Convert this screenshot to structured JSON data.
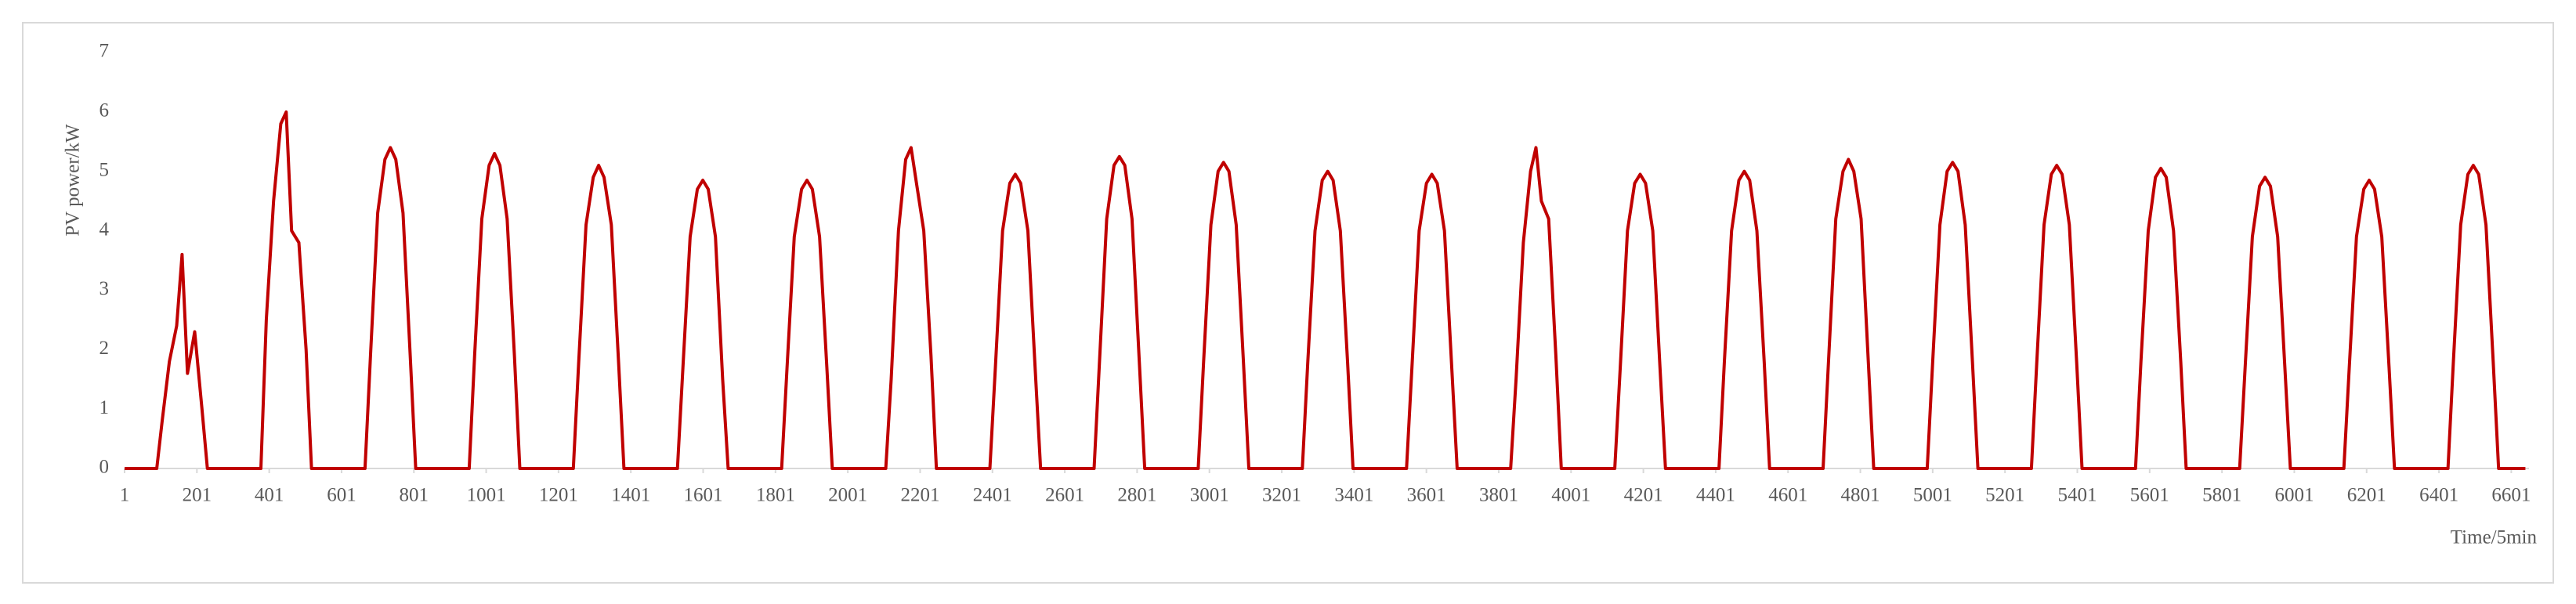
{
  "chart_data": {
    "type": "line",
    "x_label": "Time/5min",
    "y_label": "PV power/kW",
    "x": [
      1,
      90,
      105,
      125,
      145,
      160,
      175,
      195,
      215,
      230,
      378,
      393,
      413,
      433,
      448,
      463,
      483,
      503,
      518,
      666,
      681,
      701,
      721,
      736,
      751,
      771,
      791,
      806,
      954,
      969,
      989,
      1009,
      1024,
      1039,
      1059,
      1079,
      1094,
      1242,
      1257,
      1277,
      1297,
      1312,
      1327,
      1347,
      1367,
      1382,
      1530,
      1545,
      1565,
      1585,
      1600,
      1615,
      1635,
      1655,
      1670,
      1818,
      1833,
      1853,
      1873,
      1888,
      1903,
      1923,
      1943,
      1958,
      2106,
      2121,
      2141,
      2161,
      2176,
      2191,
      2211,
      2231,
      2246,
      2394,
      2409,
      2429,
      2449,
      2464,
      2479,
      2499,
      2519,
      2534,
      2682,
      2697,
      2717,
      2737,
      2752,
      2767,
      2787,
      2807,
      2822,
      2970,
      2985,
      3005,
      3025,
      3040,
      3055,
      3075,
      3095,
      3110,
      3258,
      3273,
      3293,
      3313,
      3328,
      3343,
      3363,
      3383,
      3398,
      3546,
      3561,
      3581,
      3601,
      3616,
      3631,
      3651,
      3671,
      3686,
      3834,
      3849,
      3869,
      3889,
      3904,
      3919,
      3939,
      3959,
      3974,
      4122,
      4137,
      4157,
      4177,
      4192,
      4207,
      4227,
      4247,
      4262,
      4410,
      4425,
      4445,
      4465,
      4480,
      4495,
      4515,
      4535,
      4550,
      4698,
      4713,
      4733,
      4753,
      4768,
      4783,
      4803,
      4823,
      4838,
      4986,
      5001,
      5021,
      5041,
      5056,
      5071,
      5091,
      5111,
      5126,
      5274,
      5289,
      5309,
      5329,
      5344,
      5359,
      5379,
      5399,
      5414,
      5562,
      5577,
      5597,
      5617,
      5632,
      5647,
      5667,
      5687,
      5702,
      5850,
      5865,
      5885,
      5905,
      5920,
      5935,
      5955,
      5975,
      5990,
      6138,
      6153,
      6173,
      6193,
      6208,
      6223,
      6243,
      6263,
      6278,
      6426,
      6441,
      6461,
      6481,
      6496,
      6511,
      6531,
      6551,
      6566,
      6640
    ],
    "series": [
      {
        "color": "#c00000",
        "values": [
          0,
          0,
          0.8,
          1.8,
          2.4,
          3.6,
          1.6,
          2.3,
          1.0,
          0,
          0,
          2.5,
          4.5,
          5.8,
          6.0,
          4.0,
          3.8,
          2.0,
          0,
          0,
          1.9,
          4.3,
          5.2,
          5.4,
          5.2,
          4.3,
          1.9,
          0,
          0,
          1.9,
          4.2,
          5.1,
          5.3,
          5.1,
          4.2,
          1.9,
          0,
          0,
          1.8,
          4.1,
          4.9,
          5.1,
          4.9,
          4.1,
          1.8,
          0,
          0,
          1.7,
          3.9,
          4.7,
          4.85,
          4.7,
          3.9,
          1.5,
          0,
          0,
          1.7,
          3.9,
          4.7,
          4.85,
          4.7,
          3.9,
          1.7,
          0,
          0,
          1.5,
          4.0,
          5.2,
          5.4,
          4.8,
          4.0,
          1.9,
          0,
          0,
          1.7,
          4.0,
          4.8,
          4.95,
          4.8,
          4.0,
          1.7,
          0,
          0,
          1.8,
          4.2,
          5.1,
          5.25,
          5.1,
          4.2,
          1.8,
          0,
          0,
          1.8,
          4.1,
          5.0,
          5.15,
          5.0,
          4.1,
          1.8,
          0,
          0,
          1.8,
          4.0,
          4.85,
          5.0,
          4.85,
          4.0,
          1.8,
          0,
          0,
          1.7,
          4.0,
          4.8,
          4.95,
          4.8,
          4.0,
          1.7,
          0,
          0,
          1.5,
          3.8,
          5.0,
          5.4,
          4.5,
          4.2,
          1.9,
          0,
          0,
          1.7,
          4.0,
          4.8,
          4.95,
          4.8,
          4.0,
          1.7,
          0,
          0,
          1.8,
          4.0,
          4.85,
          5.0,
          4.85,
          4.0,
          1.8,
          0,
          0,
          1.8,
          4.2,
          5.0,
          5.2,
          5.0,
          4.2,
          1.8,
          0,
          0,
          1.8,
          4.1,
          5.0,
          5.15,
          5.0,
          4.1,
          1.8,
          0,
          0,
          1.8,
          4.1,
          4.95,
          5.1,
          4.95,
          4.1,
          1.8,
          0,
          0,
          1.8,
          4.0,
          4.9,
          5.05,
          4.9,
          4.0,
          1.8,
          0,
          0,
          1.7,
          3.9,
          4.75,
          4.9,
          4.75,
          3.9,
          1.7,
          0,
          0,
          1.7,
          3.9,
          4.7,
          4.85,
          4.7,
          3.9,
          1.7,
          0,
          0,
          1.8,
          4.1,
          4.95,
          5.1,
          4.95,
          4.1,
          1.8,
          0,
          0
        ]
      }
    ],
    "xlim": [
      1,
      6650
    ],
    "xticks": [
      1,
      201,
      401,
      601,
      801,
      1001,
      1201,
      1401,
      1601,
      1801,
      2001,
      2201,
      2401,
      2601,
      2801,
      3001,
      3201,
      3401,
      3601,
      3801,
      4001,
      4201,
      4401,
      4601,
      4801,
      5001,
      5201,
      5401,
      5601,
      5801,
      6001,
      6201,
      6401,
      6601
    ],
    "ylim": [
      0,
      7
    ],
    "yticks": [
      0,
      1,
      2,
      3,
      4,
      5,
      6,
      7
    ],
    "grid": false
  }
}
